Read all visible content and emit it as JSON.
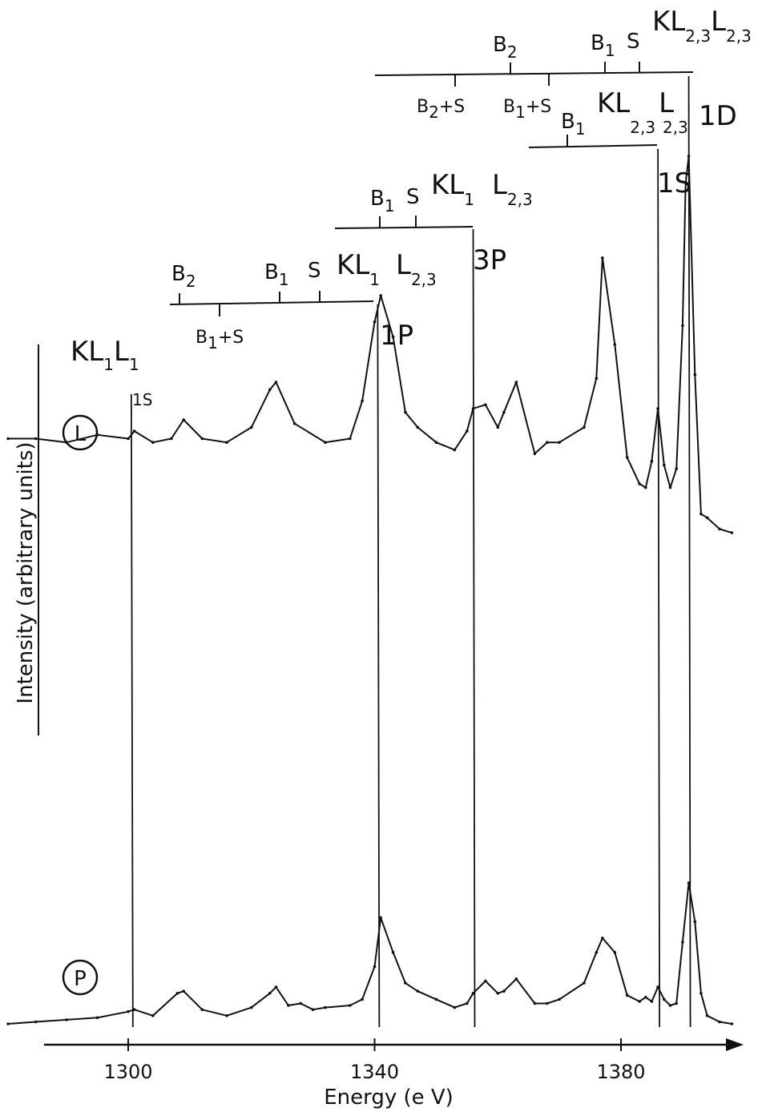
{
  "chart_data": {
    "type": "line",
    "xlabel": "Energy (e V)",
    "ylabel": "Intensity (arbitrary units)",
    "xlim": [
      1290,
      1400
    ],
    "xticks": [
      1300,
      1340,
      1380
    ],
    "tick_labels": [
      "1300",
      "1340",
      "1380"
    ],
    "series": [
      {
        "name": "L",
        "x": [
          1280.5,
          1285,
          1290,
          1295,
          1300,
          1301,
          1304,
          1307,
          1309,
          1312,
          1316,
          1320,
          1323,
          1324,
          1327,
          1332,
          1336,
          1338,
          1340,
          1341,
          1343,
          1345,
          1347,
          1350,
          1353,
          1355,
          1356,
          1358,
          1360,
          1361,
          1363,
          1366,
          1368,
          1370,
          1374,
          1376,
          1377,
          1379,
          1381,
          1383,
          1384,
          1385,
          1386,
          1387,
          1388,
          1389,
          1390,
          1390.5,
          1391,
          1392,
          1393,
          1394,
          1396,
          1398
        ],
        "y": [
          0.25,
          0.25,
          0.24,
          0.26,
          0.25,
          0.27,
          0.24,
          0.25,
          0.3,
          0.25,
          0.24,
          0.28,
          0.38,
          0.4,
          0.29,
          0.24,
          0.25,
          0.35,
          0.56,
          0.63,
          0.52,
          0.32,
          0.28,
          0.24,
          0.22,
          0.27,
          0.33,
          0.34,
          0.28,
          0.32,
          0.4,
          0.21,
          0.24,
          0.24,
          0.28,
          0.41,
          0.73,
          0.5,
          0.2,
          0.13,
          0.12,
          0.19,
          0.33,
          0.18,
          0.12,
          0.17,
          0.55,
          0.93,
          1.0,
          0.42,
          0.05,
          0.04,
          0.01,
          0.0
        ]
      },
      {
        "name": "P",
        "x": [
          1280.5,
          1285,
          1290,
          1295,
          1300,
          1301,
          1304,
          1308,
          1309,
          1312,
          1316,
          1320,
          1323,
          1324,
          1326,
          1328,
          1330,
          1332,
          1336,
          1338,
          1340,
          1341,
          1343,
          1345,
          1347,
          1350,
          1353,
          1355,
          1356,
          1358,
          1360,
          1361,
          1363,
          1366,
          1368,
          1370,
          1374,
          1376,
          1377,
          1379,
          1381,
          1383,
          1384,
          1385,
          1386,
          1387,
          1388,
          1389,
          1390,
          1391,
          1392,
          1393,
          1394,
          1396,
          1398
        ],
        "y": [
          0.0,
          0.01,
          0.02,
          0.03,
          0.06,
          0.07,
          0.04,
          0.15,
          0.16,
          0.07,
          0.04,
          0.08,
          0.15,
          0.18,
          0.09,
          0.1,
          0.07,
          0.08,
          0.09,
          0.12,
          0.28,
          0.52,
          0.35,
          0.2,
          0.16,
          0.12,
          0.08,
          0.1,
          0.15,
          0.21,
          0.15,
          0.16,
          0.22,
          0.1,
          0.1,
          0.12,
          0.2,
          0.35,
          0.42,
          0.35,
          0.14,
          0.11,
          0.13,
          0.11,
          0.18,
          0.12,
          0.09,
          0.1,
          0.4,
          0.69,
          0.5,
          0.15,
          0.04,
          0.01,
          0.0
        ]
      }
    ],
    "curve_markers": [
      "L",
      "P"
    ],
    "peak_lines": [
      {
        "label": "1S",
        "x": 1300.5
      },
      {
        "label": "1P",
        "x": 1340.5
      },
      {
        "label": "3P",
        "x": 1356
      },
      {
        "label": "1S",
        "x": 1386
      },
      {
        "label": "1D",
        "x": 1391
      }
    ],
    "annotations": [
      {
        "group": "KL1L1",
        "main": "KL",
        "sub1": "1",
        "main2": "L",
        "sub2": "1",
        "state": "1S"
      },
      {
        "group": "KL1L23 1P",
        "B2": "B",
        "B2_sub": "2",
        "B1": "B",
        "B1_sub": "1",
        "S": "S",
        "B1S": "B",
        "B1S_sub": "1",
        "B1S_tail": "+S",
        "main": "KL",
        "sub1": "1",
        "main2": "L",
        "sub2": "2,3",
        "state": "1P"
      },
      {
        "group": "KL1L23 3P",
        "B1": "B",
        "B1_sub": "1",
        "S": "S",
        "main": "KL",
        "sub1": "1",
        "main2": "L",
        "sub2": "2,3",
        "state": "3P"
      },
      {
        "group": "KL23L23 1S",
        "B1": "B",
        "B1_sub": "1",
        "main": "KL",
        "sub1": "2,3",
        "main2": "L",
        "sub2": "2,3",
        "state": "1S"
      },
      {
        "group": "KL23L23 1D",
        "B2": "B",
        "B2_sub": "2",
        "B1": "B",
        "B1_sub": "1",
        "S": "S",
        "B2S": "B",
        "B2S_sub": "2",
        "B2S_tail": "+S",
        "B1S": "B",
        "B1S_sub": "1",
        "B1S_tail": "+S",
        "main": "KL",
        "sub1": "2,3",
        "main2": "L",
        "sub2": "2,3",
        "state": "1D"
      }
    ]
  }
}
